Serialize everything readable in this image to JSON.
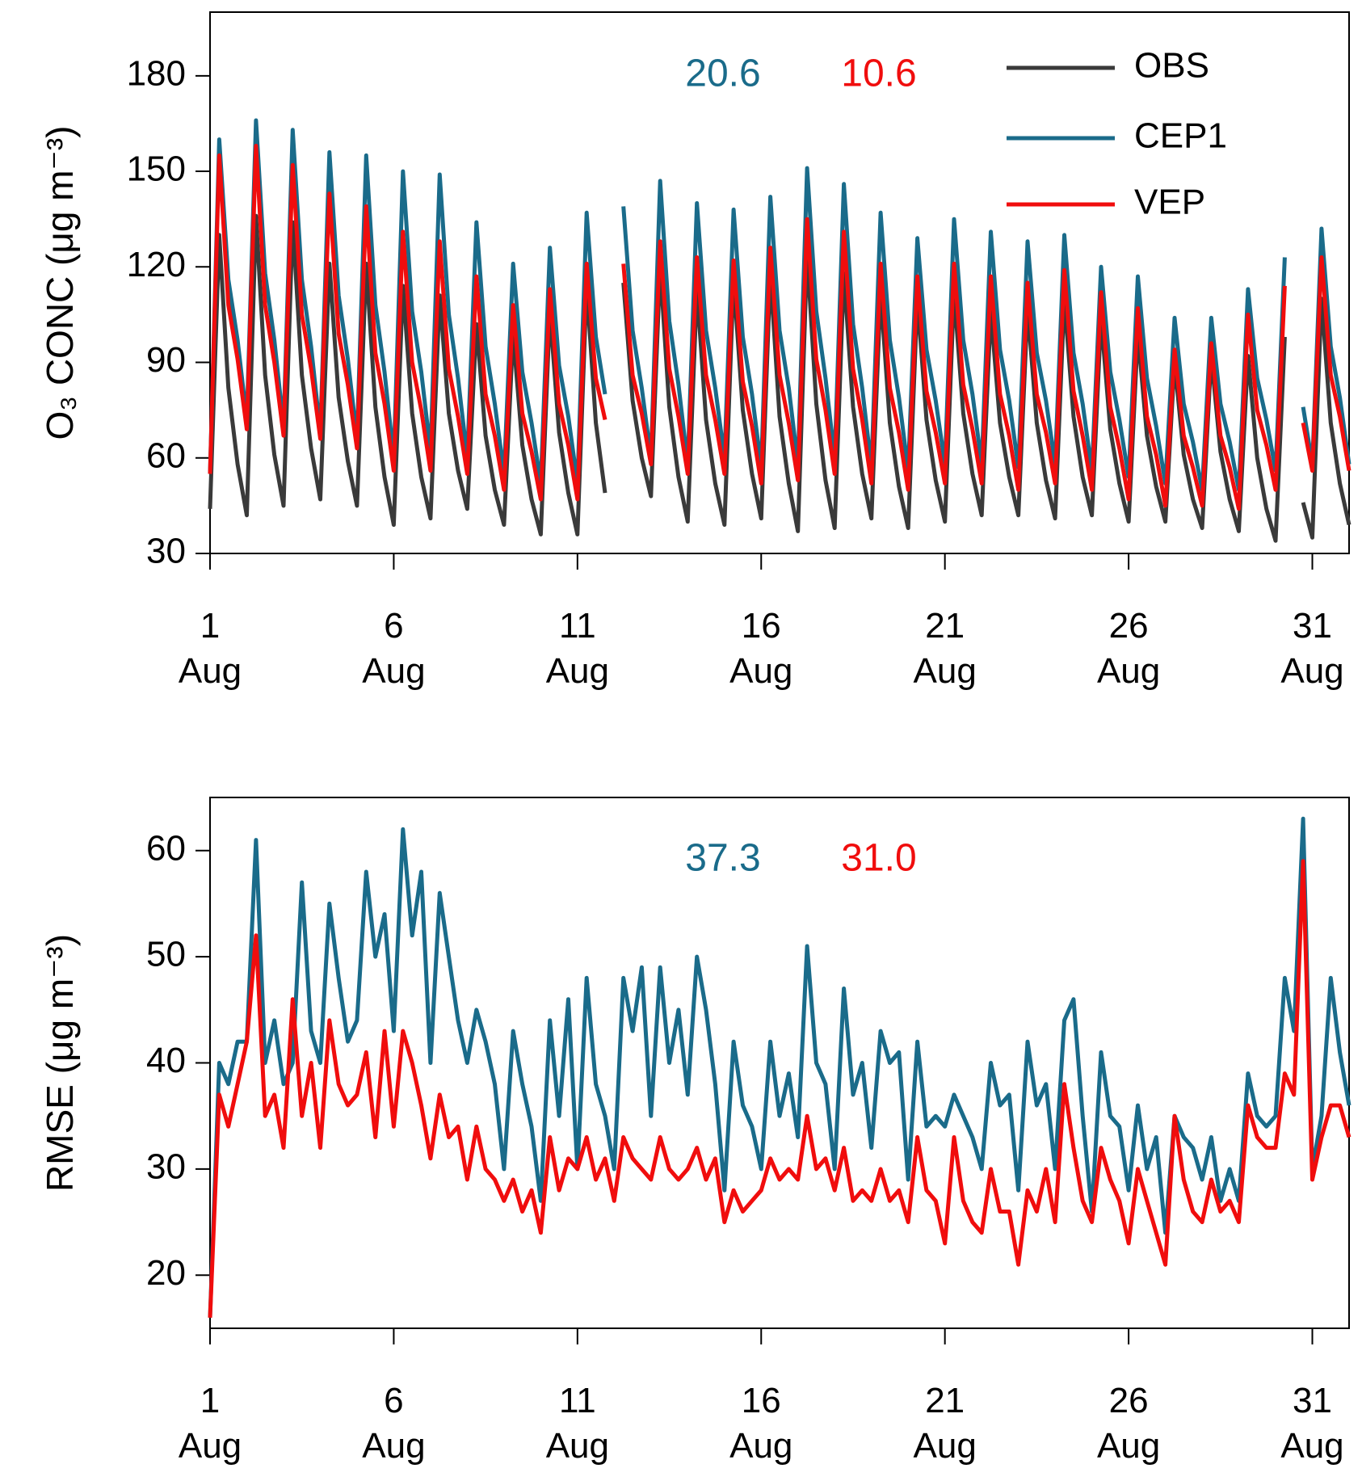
{
  "chart_data": [
    {
      "type": "line",
      "y_label": "O₃ CONC  (μg m⁻³)",
      "annotations": [
        {
          "text": "20.6",
          "color": "#1a6b8a"
        },
        {
          "text": "10.6",
          "color": "#f00d0d"
        }
      ],
      "legend": "upper right",
      "xlim": [
        1,
        32
      ],
      "ylim": [
        30,
        200
      ],
      "xticks": [
        {
          "value": 1,
          "label": "1 Aug"
        },
        {
          "value": 6,
          "label": "6 Aug"
        },
        {
          "value": 11,
          "label": "11 Aug"
        },
        {
          "value": 16,
          "label": "16 Aug"
        },
        {
          "value": 21,
          "label": "21 Aug"
        },
        {
          "value": 26,
          "label": "26 Aug"
        },
        {
          "value": 31,
          "label": "31 Aug"
        }
      ],
      "yticks": [
        30,
        60,
        90,
        120,
        150,
        180
      ],
      "x": [
        1,
        1.25,
        1.5,
        1.75,
        2,
        2.25,
        2.5,
        2.75,
        3,
        3.25,
        3.5,
        3.75,
        4,
        4.25,
        4.5,
        4.75,
        5,
        5.25,
        5.5,
        5.75,
        6,
        6.25,
        6.5,
        6.75,
        7,
        7.25,
        7.5,
        7.75,
        8,
        8.25,
        8.5,
        8.75,
        9,
        9.25,
        9.5,
        9.75,
        10,
        10.25,
        10.5,
        10.75,
        11,
        11.25,
        11.5,
        11.75,
        12,
        12.25,
        12.5,
        12.75,
        13,
        13.25,
        13.5,
        13.75,
        14,
        14.25,
        14.5,
        14.75,
        15,
        15.25,
        15.5,
        15.75,
        16,
        16.25,
        16.5,
        16.75,
        17,
        17.25,
        17.5,
        17.75,
        18,
        18.25,
        18.5,
        18.75,
        19,
        19.25,
        19.5,
        19.75,
        20,
        20.25,
        20.5,
        20.75,
        21,
        21.25,
        21.5,
        21.75,
        22,
        22.25,
        22.5,
        22.75,
        23,
        23.25,
        23.5,
        23.75,
        24,
        24.25,
        24.5,
        24.75,
        25,
        25.25,
        25.5,
        25.75,
        26,
        26.25,
        26.5,
        26.75,
        27,
        27.25,
        27.5,
        27.75,
        28,
        28.25,
        28.5,
        28.75,
        29,
        29.25,
        29.5,
        29.75,
        30,
        30.25,
        30.5,
        30.75,
        31,
        31.25,
        31.5,
        31.75,
        32
      ],
      "series": [
        {
          "name": "OBS",
          "color": "#3a3a3a",
          "values": [
            44,
            130,
            82,
            58,
            42,
            136,
            86,
            61,
            45,
            134,
            86,
            63,
            47,
            121,
            79,
            59,
            45,
            121,
            76,
            54,
            39,
            114,
            74,
            54,
            41,
            111,
            74,
            56,
            44,
            102,
            67,
            50,
            39,
            99,
            64,
            47,
            36,
            106,
            68,
            49,
            36,
            114,
            71,
            49,
            null,
            115,
            78,
            60,
            48,
            120,
            76,
            54,
            40,
            113,
            72,
            52,
            39,
            116,
            75,
            55,
            41,
            118,
            73,
            52,
            37,
            124,
            77,
            53,
            38,
            118,
            76,
            55,
            41,
            112,
            71,
            51,
            38,
            110,
            72,
            53,
            40,
            112,
            74,
            55,
            42,
            106,
            71,
            54,
            42,
            107,
            71,
            53,
            41,
            110,
            73,
            54,
            42,
            104,
            69,
            52,
            40,
            99,
            67,
            51,
            40,
            90,
            61,
            47,
            38,
            92,
            62,
            47,
            37,
            92,
            60,
            44,
            34,
            98,
            null,
            46,
            35,
            110,
            71,
            52,
            39
          ]
        },
        {
          "name": "CEP1",
          "color": "#1a6b8a",
          "values": [
            55,
            160,
            116,
            97,
            72,
            166,
            118,
            97,
            70,
            163,
            116,
            95,
            68,
            156,
            111,
            91,
            66,
            155,
            108,
            87,
            60,
            150,
            106,
            87,
            62,
            149,
            105,
            85,
            60,
            134,
            95,
            77,
            55,
            121,
            87,
            71,
            52,
            126,
            89,
            73,
            52,
            137,
            98,
            80,
            null,
            139,
            100,
            82,
            60,
            147,
            103,
            83,
            58,
            140,
            100,
            82,
            60,
            138,
            98,
            80,
            57,
            142,
            100,
            82,
            58,
            151,
            106,
            85,
            60,
            146,
            102,
            82,
            57,
            137,
            97,
            79,
            56,
            129,
            94,
            78,
            58,
            135,
            97,
            80,
            58,
            131,
            94,
            78,
            57,
            128,
            93,
            78,
            58,
            130,
            93,
            77,
            56,
            120,
            87,
            72,
            54,
            117,
            85,
            70,
            52,
            104,
            77,
            65,
            50,
            104,
            77,
            65,
            50,
            113,
            85,
            72,
            56,
            123,
            null,
            76,
            58,
            132,
            95,
            79,
            58
          ]
        },
        {
          "name": "VEP",
          "color": "#f00d0d",
          "values": [
            55,
            155,
            108,
            91,
            69,
            158,
            108,
            90,
            67,
            152,
            105,
            88,
            66,
            143,
            99,
            83,
            63,
            139,
            93,
            77,
            56,
            131,
            90,
            75,
            56,
            128,
            88,
            73,
            55,
            117,
            80,
            67,
            50,
            108,
            74,
            62,
            47,
            113,
            77,
            64,
            47,
            121,
            85,
            72,
            null,
            121,
            86,
            74,
            58,
            128,
            88,
            73,
            55,
            123,
            86,
            72,
            55,
            122,
            84,
            70,
            52,
            126,
            86,
            71,
            53,
            135,
            91,
            75,
            55,
            131,
            88,
            72,
            52,
            121,
            82,
            68,
            50,
            117,
            81,
            68,
            52,
            121,
            83,
            69,
            52,
            117,
            80,
            67,
            50,
            115,
            80,
            68,
            52,
            119,
            81,
            67,
            50,
            112,
            76,
            63,
            47,
            107,
            73,
            61,
            45,
            94,
            67,
            57,
            45,
            96,
            67,
            57,
            44,
            105,
            75,
            64,
            50,
            114,
            null,
            71,
            56,
            123,
            86,
            73,
            56
          ]
        }
      ]
    },
    {
      "type": "line",
      "y_label": "RMSE  (μg m⁻³)",
      "annotations": [
        {
          "text": "37.3",
          "color": "#1a6b8a"
        },
        {
          "text": "31.0",
          "color": "#f00d0d"
        }
      ],
      "xlim": [
        1,
        32
      ],
      "ylim": [
        15,
        65
      ],
      "xticks": [
        {
          "value": 1,
          "label": "1 Aug"
        },
        {
          "value": 6,
          "label": "6 Aug"
        },
        {
          "value": 11,
          "label": "11 Aug"
        },
        {
          "value": 16,
          "label": "16 Aug"
        },
        {
          "value": 21,
          "label": "21 Aug"
        },
        {
          "value": 26,
          "label": "26 Aug"
        },
        {
          "value": 31,
          "label": "31 Aug"
        }
      ],
      "yticks": [
        20,
        30,
        40,
        50,
        60
      ],
      "x": [
        1,
        1.25,
        1.5,
        1.75,
        2,
        2.25,
        2.5,
        2.75,
        3,
        3.25,
        3.5,
        3.75,
        4,
        4.25,
        4.5,
        4.75,
        5,
        5.25,
        5.5,
        5.75,
        6,
        6.25,
        6.5,
        6.75,
        7,
        7.25,
        7.5,
        7.75,
        8,
        8.25,
        8.5,
        8.75,
        9,
        9.25,
        9.5,
        9.75,
        10,
        10.25,
        10.5,
        10.75,
        11,
        11.25,
        11.5,
        11.75,
        12,
        12.25,
        12.5,
        12.75,
        13,
        13.25,
        13.5,
        13.75,
        14,
        14.25,
        14.5,
        14.75,
        15,
        15.25,
        15.5,
        15.75,
        16,
        16.25,
        16.5,
        16.75,
        17,
        17.25,
        17.5,
        17.75,
        18,
        18.25,
        18.5,
        18.75,
        19,
        19.25,
        19.5,
        19.75,
        20,
        20.25,
        20.5,
        20.75,
        21,
        21.25,
        21.5,
        21.75,
        22,
        22.25,
        22.5,
        22.75,
        23,
        23.25,
        23.5,
        23.75,
        24,
        24.25,
        24.5,
        24.75,
        25,
        25.25,
        25.5,
        25.75,
        26,
        26.25,
        26.5,
        26.75,
        27,
        27.25,
        27.5,
        27.75,
        28,
        28.25,
        28.5,
        28.75,
        29,
        29.25,
        29.5,
        29.75,
        30,
        30.25,
        30.5,
        30.75,
        31,
        31.25,
        31.5,
        31.75,
        32
      ],
      "series": [
        {
          "name": "CEP1",
          "color": "#1a6b8a",
          "values": [
            16,
            40,
            38,
            42,
            42,
            61,
            40,
            44,
            38,
            40,
            57,
            43,
            40,
            55,
            48,
            42,
            44,
            58,
            50,
            54,
            43,
            62,
            52,
            58,
            40,
            56,
            50,
            44,
            40,
            45,
            42,
            38,
            30,
            43,
            38,
            34,
            27,
            44,
            35,
            46,
            30,
            48,
            38,
            35,
            30,
            48,
            43,
            49,
            35,
            49,
            40,
            45,
            37,
            50,
            45,
            38,
            28,
            42,
            36,
            34,
            30,
            42,
            35,
            39,
            33,
            51,
            40,
            38,
            30,
            47,
            37,
            40,
            32,
            43,
            40,
            41,
            29,
            42,
            34,
            35,
            34,
            37,
            35,
            33,
            30,
            40,
            36,
            37,
            28,
            42,
            36,
            38,
            30,
            44,
            46,
            35,
            26,
            41,
            35,
            34,
            28,
            36,
            30,
            33,
            24,
            35,
            33,
            32,
            29,
            33,
            27,
            30,
            27,
            39,
            35,
            34,
            35,
            48,
            43,
            63,
            30,
            35,
            48,
            41,
            36
          ]
        },
        {
          "name": "VEP",
          "color": "#f00d0d",
          "values": [
            16,
            37,
            34,
            38,
            42,
            52,
            35,
            37,
            32,
            46,
            35,
            40,
            32,
            44,
            38,
            36,
            37,
            41,
            33,
            43,
            34,
            43,
            40,
            36,
            31,
            37,
            33,
            34,
            29,
            34,
            30,
            29,
            27,
            29,
            26,
            28,
            24,
            33,
            28,
            31,
            30,
            33,
            29,
            31,
            27,
            33,
            31,
            30,
            29,
            33,
            30,
            29,
            30,
            32,
            29,
            31,
            25,
            28,
            26,
            27,
            28,
            31,
            29,
            30,
            29,
            35,
            30,
            31,
            28,
            32,
            27,
            28,
            27,
            30,
            27,
            28,
            25,
            33,
            28,
            27,
            23,
            33,
            27,
            25,
            24,
            30,
            26,
            26,
            21,
            28,
            26,
            30,
            25,
            38,
            32,
            27,
            25,
            32,
            29,
            27,
            23,
            30,
            27,
            24,
            21,
            35,
            29,
            26,
            25,
            29,
            26,
            27,
            25,
            36,
            33,
            32,
            32,
            39,
            37,
            59,
            29,
            33,
            36,
            36,
            33
          ]
        }
      ]
    }
  ]
}
